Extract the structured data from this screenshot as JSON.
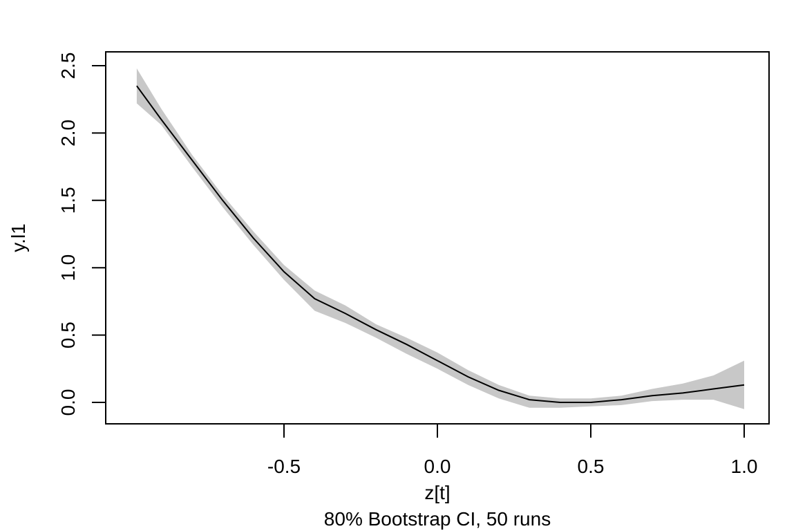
{
  "chart_data": {
    "type": "line",
    "title": "",
    "xlabel": "z[t]",
    "ylabel": "y.l1",
    "subtitle": "80% Bootstrap CI, 50 runs",
    "xlim": [
      -1.0,
      1.0
    ],
    "ylim": [
      0.0,
      2.5
    ],
    "x_ticks": [
      -0.5,
      0.0,
      0.5,
      1.0
    ],
    "x_tick_labels": [
      "-0.5",
      "0.0",
      "0.5",
      "1.0"
    ],
    "y_ticks": [
      0.0,
      0.5,
      1.0,
      1.5,
      2.0,
      2.5
    ],
    "y_tick_labels": [
      "0.0",
      "0.5",
      "1.0",
      "1.5",
      "2.0",
      "2.5"
    ],
    "grid": false,
    "colors": {
      "line": "#000000",
      "band": "#c8c8c8"
    },
    "series": [
      {
        "x": [
          -0.98,
          -0.9,
          -0.8,
          -0.7,
          -0.6,
          -0.5,
          -0.4,
          -0.3,
          -0.2,
          -0.1,
          0.0,
          0.1,
          0.2,
          0.3,
          0.4,
          0.5,
          0.6,
          0.7,
          0.8,
          0.9,
          1.0
        ],
        "y": [
          2.35,
          2.1,
          1.8,
          1.5,
          1.22,
          0.97,
          0.77,
          0.66,
          0.54,
          0.43,
          0.31,
          0.19,
          0.09,
          0.02,
          0.0,
          0.0,
          0.02,
          0.05,
          0.07,
          0.1,
          0.13
        ],
        "lower": [
          2.22,
          2.06,
          1.75,
          1.45,
          1.17,
          0.91,
          0.68,
          0.59,
          0.48,
          0.36,
          0.25,
          0.13,
          0.03,
          -0.04,
          -0.04,
          -0.03,
          -0.02,
          0.01,
          0.02,
          0.02,
          -0.05
        ],
        "upper": [
          2.48,
          2.18,
          1.84,
          1.54,
          1.27,
          1.02,
          0.83,
          0.72,
          0.58,
          0.48,
          0.37,
          0.24,
          0.13,
          0.05,
          0.03,
          0.03,
          0.05,
          0.1,
          0.14,
          0.2,
          0.31
        ]
      }
    ]
  }
}
